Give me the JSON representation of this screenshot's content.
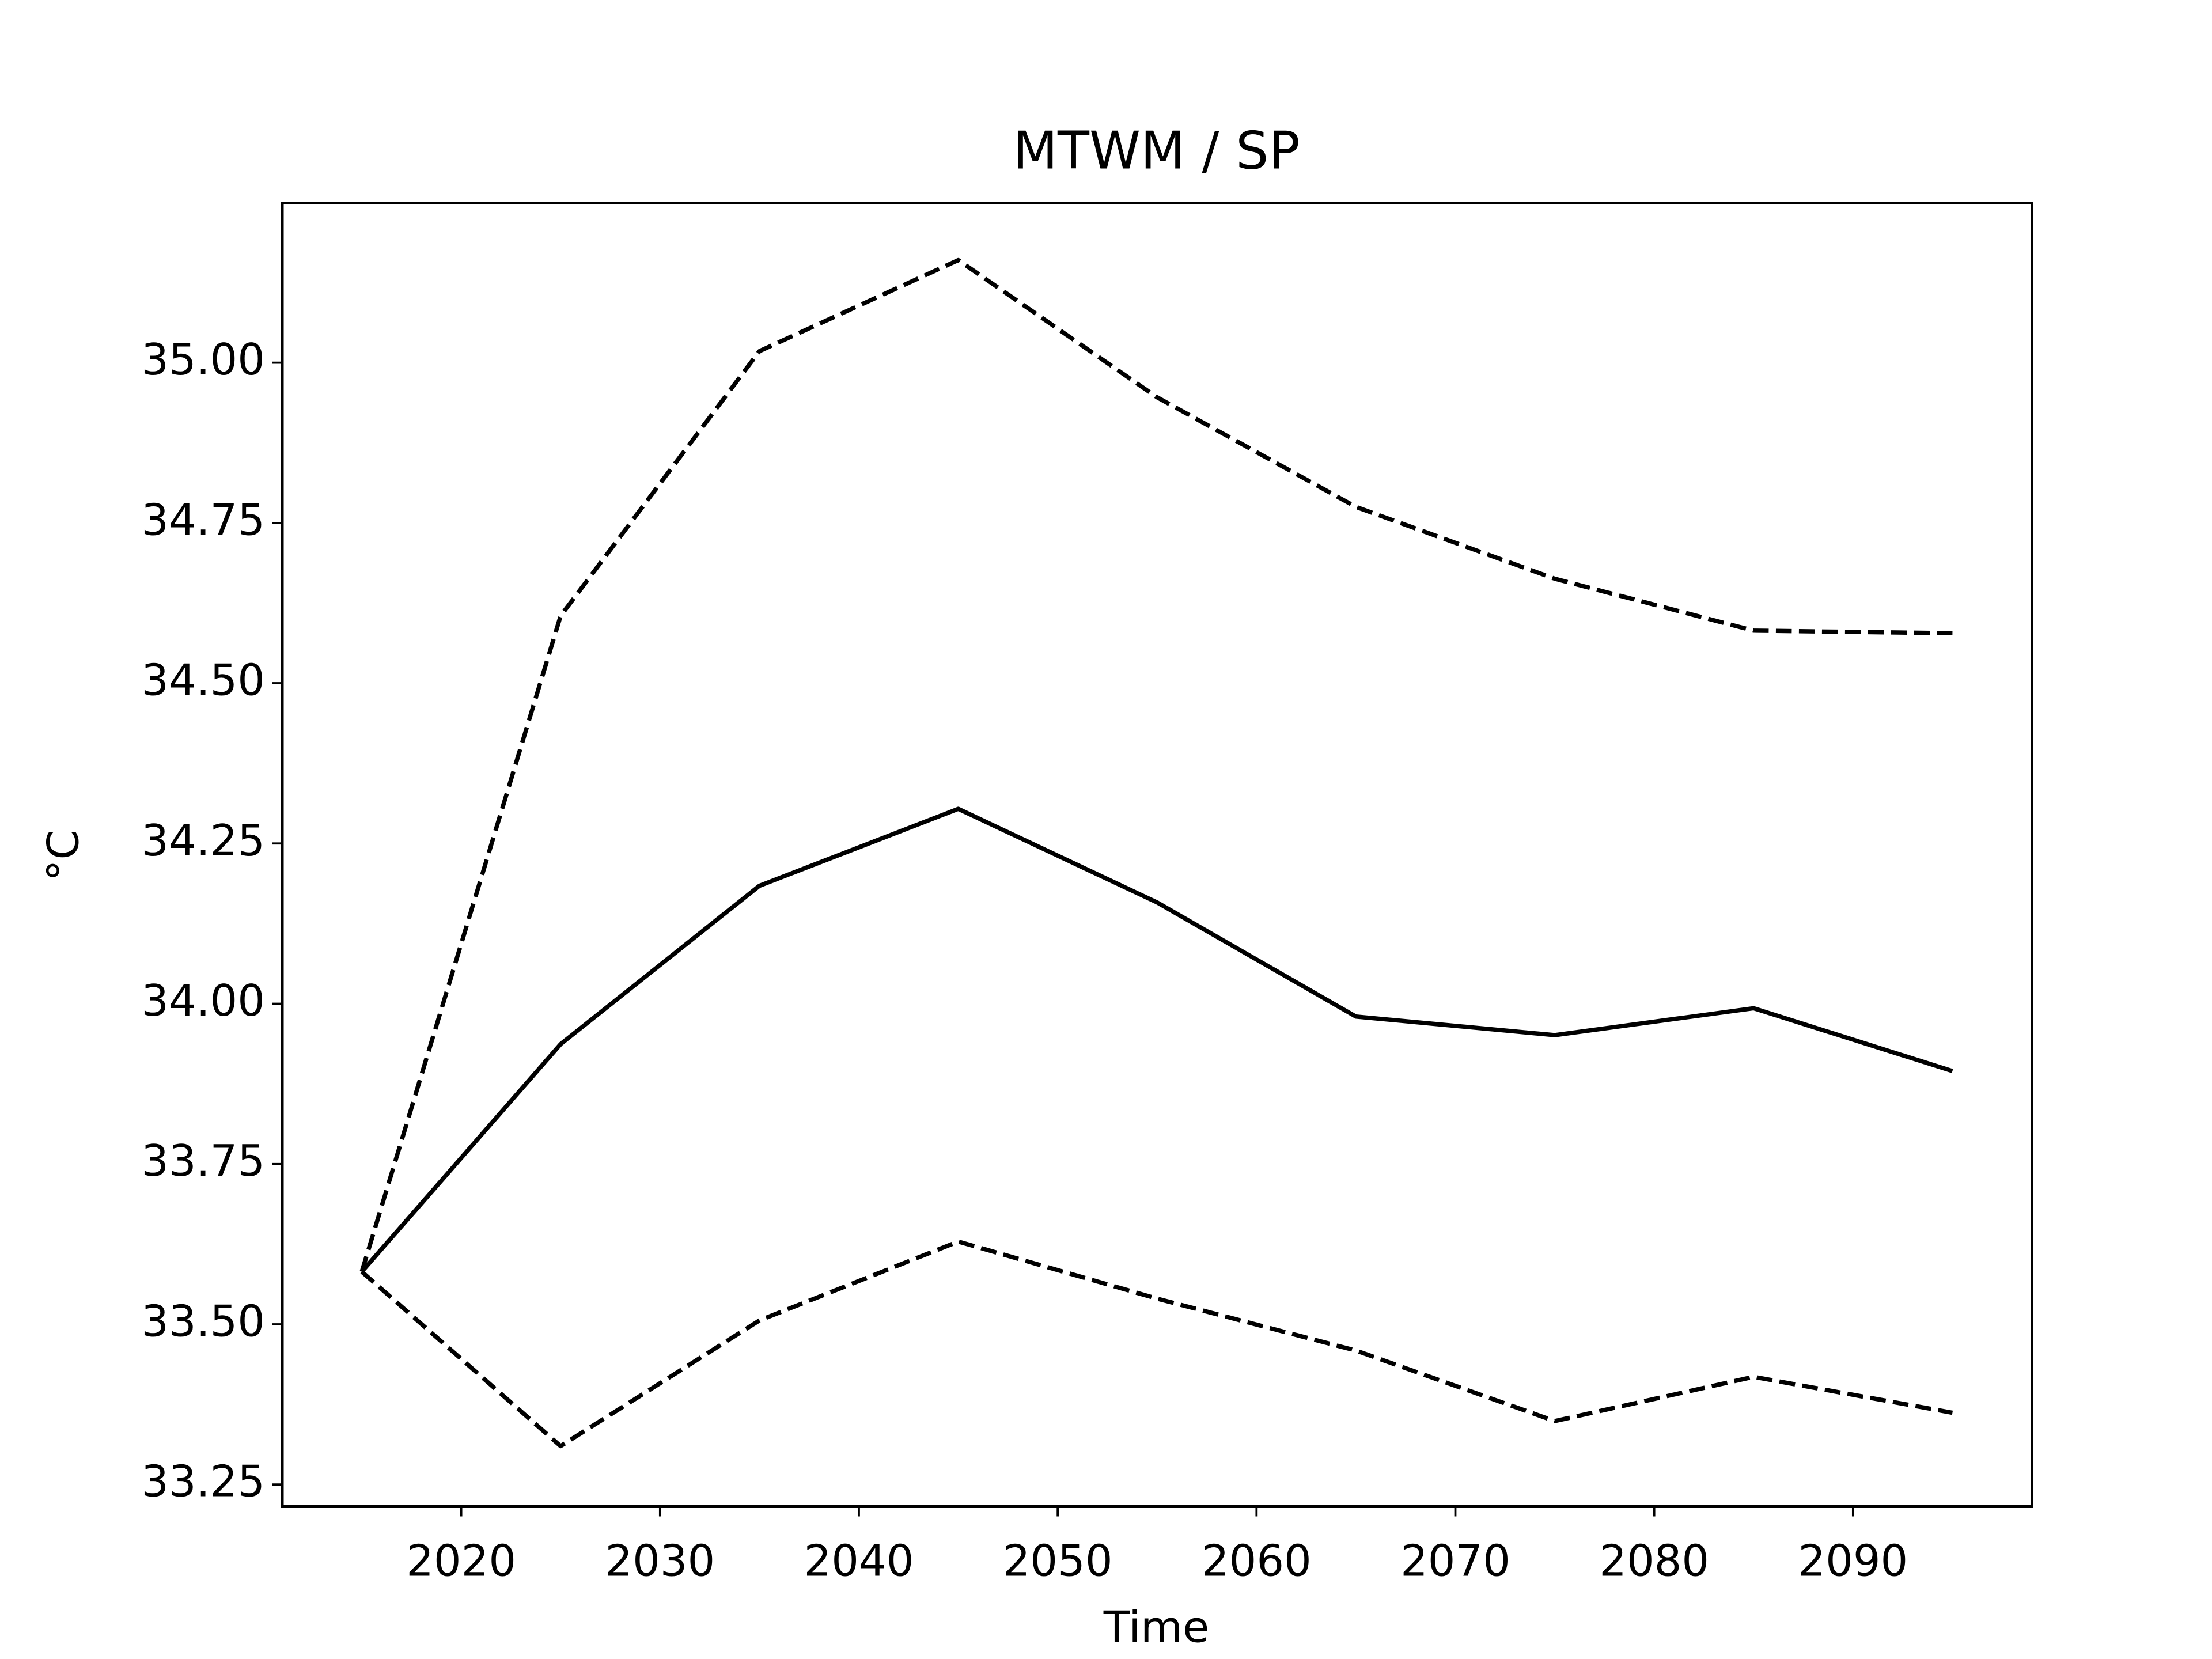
{
  "chart_data": {
    "type": "line",
    "title": "MTWM / SP",
    "xlabel": "Time",
    "ylabel": "°C",
    "x": [
      2015,
      2025,
      2035,
      2045,
      2055,
      2065,
      2075,
      2085,
      2095
    ],
    "series": [
      {
        "color": "#000000",
        "linestyle": "solid",
        "values": [
          33.582,
          33.937,
          34.184,
          34.304,
          34.158,
          33.98,
          33.951,
          33.993,
          33.895
        ]
      },
      {
        "color": "#000000",
        "linestyle": "dashed",
        "values": [
          33.582,
          34.605,
          35.018,
          35.16,
          34.946,
          34.775,
          34.663,
          34.582,
          34.578
        ]
      },
      {
        "color": "#000000",
        "linestyle": "dashed",
        "values": [
          33.582,
          33.31,
          33.506,
          33.629,
          33.54,
          33.459,
          33.349,
          33.418,
          33.362
        ]
      }
    ],
    "xlim": [
      2011,
      2099
    ],
    "xticks": [
      2020,
      2030,
      2040,
      2050,
      2060,
      2070,
      2080,
      2090
    ],
    "ylim": [
      33.216,
      35.249
    ],
    "yticks": [
      33.25,
      {
        "value": 33.5,
        "label": "33.50"
      },
      33.75,
      {
        "value": 34,
        "label": "34.00"
      },
      34.25,
      {
        "value": 34.5,
        "label": "34.50"
      },
      34.75,
      {
        "value": 35,
        "label": "35.00"
      }
    ],
    "grid": false
  }
}
